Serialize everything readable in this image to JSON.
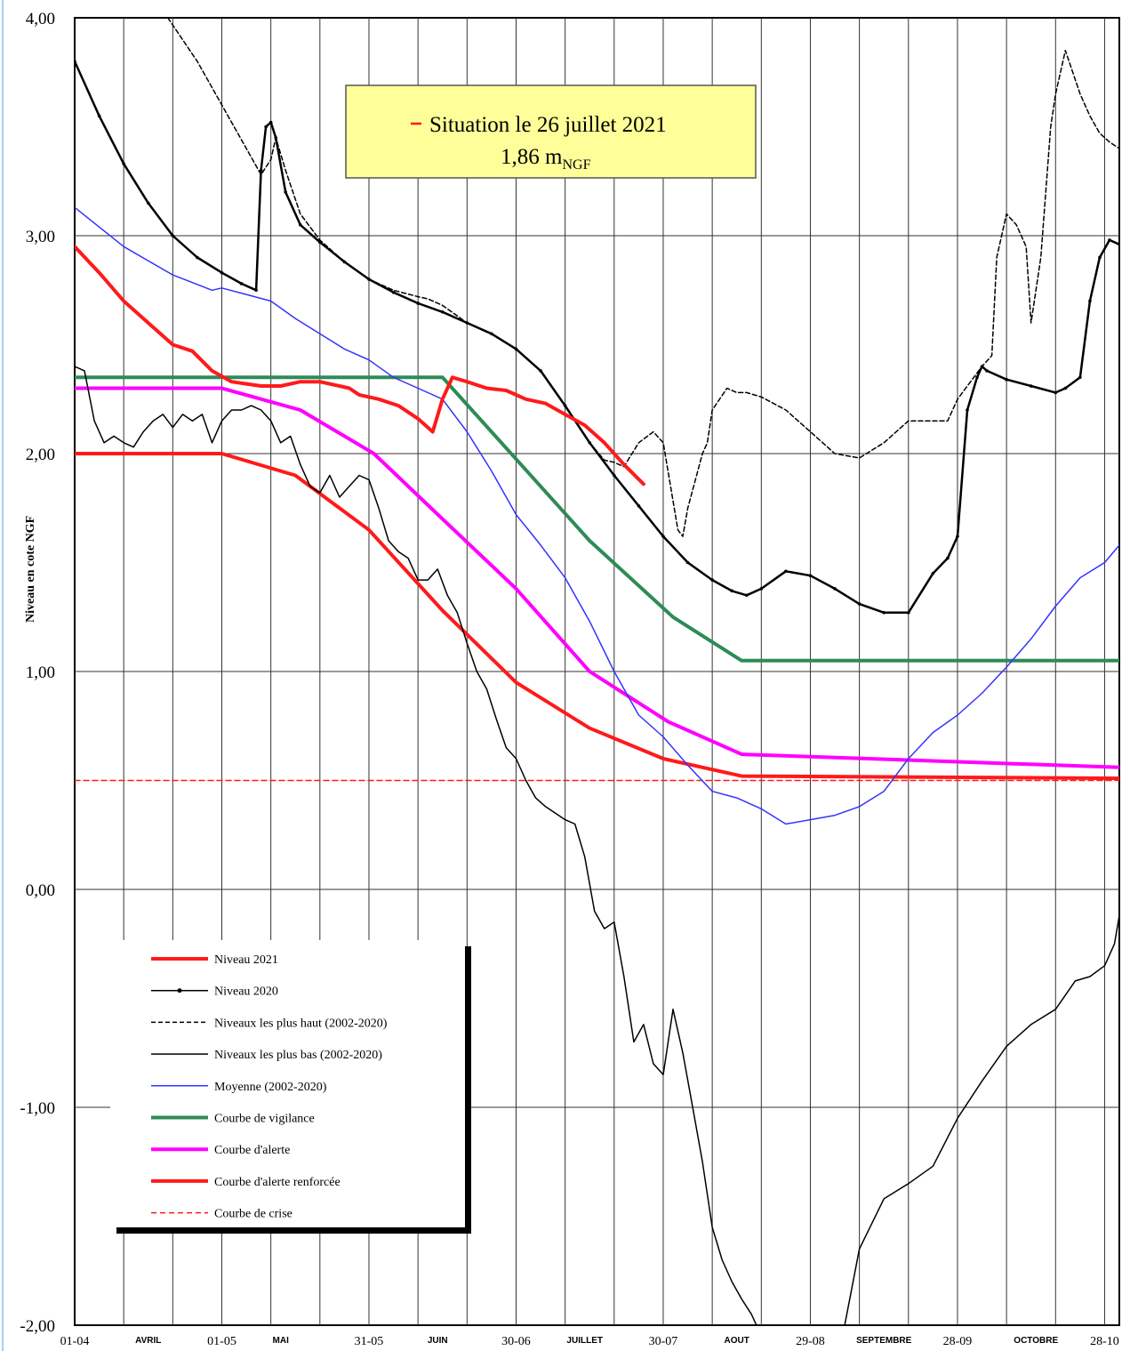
{
  "chart_data": {
    "type": "line",
    "ylabel": "Niveau en cote NGF",
    "ylim": [
      -2,
      4
    ],
    "y_ticks": [
      "4,00",
      "3,00",
      "2,00",
      "1,00",
      "0,00",
      "-1,00",
      "-2,00"
    ],
    "x_range_days": [
      0,
      213
    ],
    "x_date_ticks": [
      {
        "day": 0,
        "label": "01-04"
      },
      {
        "day": 30,
        "label": "01-05"
      },
      {
        "day": 60,
        "label": "31-05"
      },
      {
        "day": 90,
        "label": "30-06"
      },
      {
        "day": 120,
        "label": "30-07"
      },
      {
        "day": 150,
        "label": "29-08"
      },
      {
        "day": 180,
        "label": "28-09"
      },
      {
        "day": 210,
        "label": "28-10"
      }
    ],
    "x_month_ticks": [
      {
        "day": 15,
        "label": "AVRIL"
      },
      {
        "day": 42,
        "label": "MAI"
      },
      {
        "day": 74,
        "label": "JUIN"
      },
      {
        "day": 104,
        "label": "JUILLET"
      },
      {
        "day": 135,
        "label": "AOUT"
      },
      {
        "day": 165,
        "label": "SEPTEMBRE"
      },
      {
        "day": 196,
        "label": "OCTOBRE"
      }
    ],
    "annotation": {
      "line1": "Situation le 26 juillet 2021",
      "line2_value": "1,86 m",
      "line2_sub": "NGF"
    },
    "series": [
      {
        "name": "Niveau 2021",
        "color": "#ff1a1a",
        "dash": "",
        "width": 4,
        "marker": false,
        "x": [
          0,
          5,
          10,
          15,
          20,
          24,
          28,
          32,
          35,
          38,
          42,
          46,
          50,
          54,
          56,
          58,
          62,
          66,
          70,
          73,
          75,
          77,
          80,
          84,
          88,
          92,
          96,
          100,
          104,
          108,
          112,
          116
        ],
        "y": [
          2.95,
          2.83,
          2.7,
          2.6,
          2.5,
          2.47,
          2.38,
          2.33,
          2.32,
          2.31,
          2.31,
          2.33,
          2.33,
          2.31,
          2.3,
          2.27,
          2.25,
          2.22,
          2.16,
          2.1,
          2.25,
          2.35,
          2.33,
          2.3,
          2.29,
          2.25,
          2.23,
          2.18,
          2.13,
          2.05,
          1.95,
          1.86
        ]
      },
      {
        "name": "Niveau 2020",
        "color": "#000000",
        "dash": "",
        "width": 2.5,
        "marker": true,
        "x": [
          0,
          5,
          10,
          15,
          20,
          25,
          30,
          34,
          37,
          38,
          39,
          40,
          41,
          43,
          46,
          50,
          55,
          60,
          65,
          70,
          75,
          80,
          85,
          90,
          95,
          100,
          105,
          110,
          115,
          120,
          125,
          130,
          134,
          137,
          140,
          145,
          150,
          155,
          160,
          165,
          170,
          175,
          178,
          180,
          182,
          184,
          185,
          186,
          190,
          195,
          200,
          202,
          205,
          207,
          209,
          211,
          213
        ],
        "y": [
          3.8,
          3.55,
          3.33,
          3.15,
          3.0,
          2.9,
          2.83,
          2.78,
          2.75,
          3.3,
          3.5,
          3.52,
          3.45,
          3.2,
          3.05,
          2.97,
          2.88,
          2.8,
          2.74,
          2.69,
          2.65,
          2.6,
          2.55,
          2.48,
          2.38,
          2.22,
          2.05,
          1.9,
          1.76,
          1.62,
          1.5,
          1.42,
          1.37,
          1.35,
          1.38,
          1.46,
          1.44,
          1.38,
          1.31,
          1.27,
          1.27,
          1.45,
          1.52,
          1.62,
          2.2,
          2.35,
          2.4,
          2.38,
          2.34,
          2.31,
          2.28,
          2.3,
          2.35,
          2.7,
          2.9,
          2.98,
          2.96
        ]
      },
      {
        "name": "Niveaux les plus haut (2002-2020)",
        "color": "#000000",
        "dash": "5,3",
        "width": 1.5,
        "marker": false,
        "x": [
          19,
          25,
          30,
          35,
          38,
          40,
          41,
          43,
          46,
          50,
          55,
          60,
          65,
          70,
          72,
          75,
          80,
          85,
          90,
          95,
          100,
          105,
          108,
          110,
          112,
          115,
          118,
          120,
          123,
          124,
          125,
          128,
          129,
          130,
          133,
          135,
          137,
          140,
          145,
          150,
          155,
          160,
          165,
          170,
          175,
          178,
          180,
          185,
          187,
          188,
          190,
          192,
          194,
          195,
          197,
          199,
          200,
          202,
          205,
          207,
          209,
          211,
          213
        ],
        "y": [
          4.0,
          3.8,
          3.6,
          3.4,
          3.28,
          3.35,
          3.45,
          3.3,
          3.1,
          2.98,
          2.88,
          2.8,
          2.75,
          2.72,
          2.71,
          2.68,
          2.6,
          2.55,
          2.48,
          2.38,
          2.22,
          2.05,
          1.97,
          1.96,
          1.94,
          2.05,
          2.1,
          2.05,
          1.65,
          1.62,
          1.75,
          2.0,
          2.05,
          2.2,
          2.3,
          2.28,
          2.28,
          2.26,
          2.2,
          2.1,
          2.0,
          1.98,
          2.05,
          2.15,
          2.15,
          2.15,
          2.25,
          2.4,
          2.45,
          2.9,
          3.1,
          3.05,
          2.95,
          2.6,
          2.9,
          3.5,
          3.65,
          3.85,
          3.65,
          3.55,
          3.47,
          3.43,
          3.4
        ]
      },
      {
        "name": "Niveaux les plus bas (2002-2020)",
        "color": "#000000",
        "dash": "",
        "width": 1.5,
        "marker": false,
        "x": [
          0,
          2,
          4,
          6,
          8,
          10,
          12,
          14,
          16,
          18,
          20,
          22,
          24,
          26,
          28,
          30,
          32,
          34,
          36,
          38,
          40,
          42,
          44,
          46,
          48,
          50,
          52,
          54,
          56,
          58,
          60,
          62,
          64,
          66,
          68,
          70,
          72,
          74,
          76,
          78,
          80,
          82,
          84,
          86,
          88,
          90,
          92,
          94,
          96,
          98,
          100,
          102,
          104,
          106,
          108,
          110,
          112,
          114,
          116,
          118,
          120,
          122,
          124,
          126,
          128,
          130,
          132,
          134,
          136,
          138,
          139
        ],
        "y": [
          2.4,
          2.38,
          2.15,
          2.05,
          2.08,
          2.05,
          2.03,
          2.1,
          2.15,
          2.18,
          2.12,
          2.18,
          2.15,
          2.18,
          2.05,
          2.15,
          2.2,
          2.2,
          2.22,
          2.2,
          2.15,
          2.05,
          2.08,
          1.95,
          1.85,
          1.82,
          1.9,
          1.8,
          1.85,
          1.9,
          1.88,
          1.75,
          1.6,
          1.55,
          1.52,
          1.42,
          1.42,
          1.47,
          1.35,
          1.27,
          1.13,
          1.0,
          0.92,
          0.78,
          0.65,
          0.6,
          0.5,
          0.42,
          0.38,
          0.35,
          0.32,
          0.3,
          0.15,
          -0.1,
          -0.18,
          -0.15,
          -0.4,
          -0.7,
          -0.62,
          -0.8,
          -0.85,
          -0.55,
          -0.75,
          -1.0,
          -1.25,
          -1.55,
          -1.7,
          -1.8,
          -1.88,
          -1.95,
          -2.0
        ]
      },
      {
        "name": "Niveaux les plus bas (2002-2020)",
        "color": "#000000",
        "dash": "",
        "width": 1.5,
        "marker": false,
        "x": [
          157,
          160,
          165,
          170,
          175,
          180,
          185,
          190,
          195,
          200,
          204,
          207,
          210,
          212,
          213
        ],
        "y": [
          -2.0,
          -1.65,
          -1.42,
          -1.35,
          -1.27,
          -1.05,
          -0.88,
          -0.72,
          -0.62,
          -0.55,
          -0.42,
          -0.4,
          -0.35,
          -0.25,
          -0.12
        ]
      },
      {
        "name": "Moyenne (2002-2020)",
        "color": "#3333ff",
        "dash": "",
        "width": 1.5,
        "marker": false,
        "x": [
          0,
          10,
          20,
          28,
          30,
          35,
          40,
          45,
          50,
          55,
          60,
          65,
          70,
          75,
          80,
          85,
          90,
          95,
          100,
          105,
          110,
          115,
          120,
          125,
          130,
          135,
          140,
          145,
          150,
          155,
          160,
          165,
          170,
          175,
          180,
          185,
          190,
          195,
          200,
          205,
          210,
          213
        ],
        "y": [
          3.13,
          2.95,
          2.82,
          2.75,
          2.76,
          2.73,
          2.7,
          2.62,
          2.55,
          2.48,
          2.43,
          2.35,
          2.3,
          2.25,
          2.1,
          1.92,
          1.72,
          1.58,
          1.43,
          1.23,
          1.0,
          0.8,
          0.7,
          0.57,
          0.45,
          0.42,
          0.37,
          0.3,
          0.32,
          0.34,
          0.38,
          0.45,
          0.6,
          0.72,
          0.8,
          0.9,
          1.02,
          1.15,
          1.3,
          1.43,
          1.5,
          1.58
        ]
      },
      {
        "name": "Courbe de vigilance",
        "color": "#2e8b57",
        "dash": "",
        "width": 4,
        "marker": false,
        "x": [
          0,
          75,
          105,
          122,
          136,
          213
        ],
        "y": [
          2.35,
          2.35,
          1.6,
          1.25,
          1.05,
          1.05
        ]
      },
      {
        "name": "Courbe d'alerte",
        "color": "#ff00ff",
        "dash": "",
        "width": 4,
        "marker": false,
        "x": [
          0,
          30,
          46,
          61,
          75,
          90,
          105,
          121,
          136,
          213
        ],
        "y": [
          2.3,
          2.3,
          2.2,
          2.0,
          1.7,
          1.38,
          1.0,
          0.77,
          0.62,
          0.56
        ]
      },
      {
        "name": "Courbe d'alerte renforcée",
        "color": "#ff1a1a",
        "dash": "",
        "width": 4,
        "marker": false,
        "x": [
          0,
          30,
          45,
          60,
          75,
          90,
          105,
          120,
          136,
          213
        ],
        "y": [
          2.0,
          2.0,
          1.9,
          1.65,
          1.28,
          0.95,
          0.74,
          0.6,
          0.52,
          0.51
        ]
      },
      {
        "name": "Courbe de crise",
        "color": "#ff1a1a",
        "dash": "6,4",
        "width": 1.5,
        "marker": false,
        "x": [
          0,
          213
        ],
        "y": [
          0.5,
          0.5
        ]
      }
    ]
  },
  "legend": {
    "items": [
      {
        "label": "Niveau 2021",
        "color": "#ff1a1a",
        "dash": "",
        "width": 4,
        "marker": false
      },
      {
        "label": "Niveau 2020",
        "color": "#000000",
        "dash": "",
        "width": 1.5,
        "marker": true
      },
      {
        "label": "Niveaux les plus haut (2002-2020)",
        "color": "#000000",
        "dash": "5,3",
        "width": 1.5,
        "marker": false
      },
      {
        "label": "Niveaux les plus bas (2002-2020)",
        "color": "#000000",
        "dash": "",
        "width": 1.5,
        "marker": false
      },
      {
        "label": "Moyenne (2002-2020)",
        "color": "#3333ff",
        "dash": "",
        "width": 1.5,
        "marker": false
      },
      {
        "label": "Courbe de vigilance",
        "color": "#2e8b57",
        "dash": "",
        "width": 4,
        "marker": false
      },
      {
        "label": "Courbe d'alerte",
        "color": "#ff00ff",
        "dash": "",
        "width": 4,
        "marker": false
      },
      {
        "label": "Courbe d'alerte renforcée",
        "color": "#ff1a1a",
        "dash": "",
        "width": 4,
        "marker": false
      },
      {
        "label": "Courbe de crise",
        "color": "#ff1a1a",
        "dash": "6,4",
        "width": 1.5,
        "marker": false
      }
    ]
  }
}
